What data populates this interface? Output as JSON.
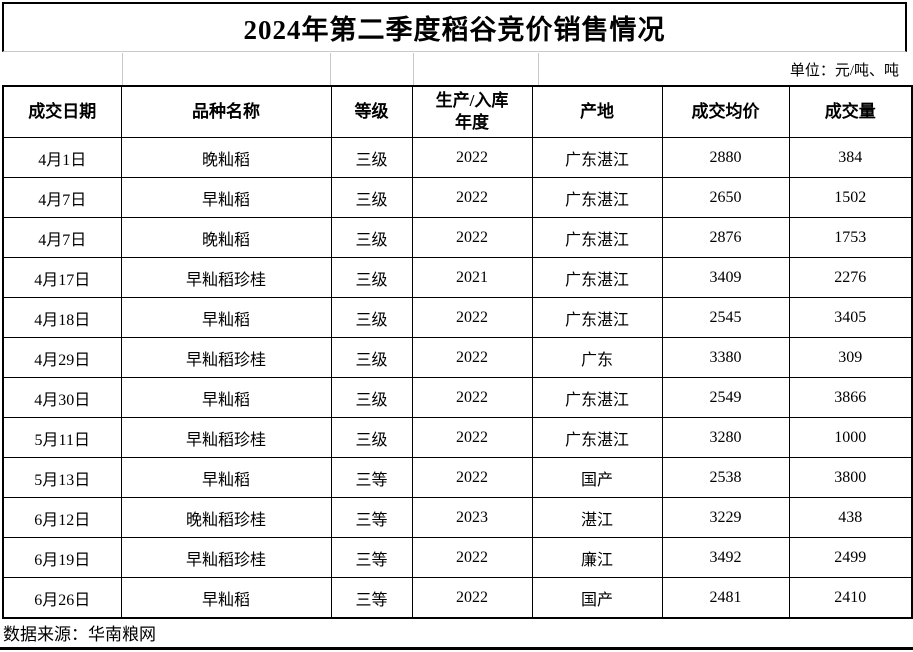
{
  "title": "2024年第二季度稻谷竞价销售情况",
  "unit_note": "单位：元/吨、吨",
  "source_note": "数据来源：华南粮网",
  "table": {
    "headers": [
      "成交日期",
      "品种名称",
      "等级",
      "生产/入库\n年度",
      "产地",
      "成交均价",
      "成交量"
    ],
    "rows": [
      [
        "4月1日",
        "晚籼稻",
        "三级",
        "2022",
        "广东湛江",
        "2880",
        "384"
      ],
      [
        "4月7日",
        "早籼稻",
        "三级",
        "2022",
        "广东湛江",
        "2650",
        "1502"
      ],
      [
        "4月7日",
        "晚籼稻",
        "三级",
        "2022",
        "广东湛江",
        "2876",
        "1753"
      ],
      [
        "4月17日",
        "早籼稻珍桂",
        "三级",
        "2021",
        "广东湛江",
        "3409",
        "2276"
      ],
      [
        "4月18日",
        "早籼稻",
        "三级",
        "2022",
        "广东湛江",
        "2545",
        "3405"
      ],
      [
        "4月29日",
        "早籼稻珍桂",
        "三级",
        "2022",
        "广东",
        "3380",
        "309"
      ],
      [
        "4月30日",
        "早籼稻",
        "三级",
        "2022",
        "广东湛江",
        "2549",
        "3866"
      ],
      [
        "5月11日",
        "早籼稻珍桂",
        "三级",
        "2022",
        "广东湛江",
        "3280",
        "1000"
      ],
      [
        "5月13日",
        "早籼稻",
        "三等",
        "2022",
        "国产",
        "2538",
        "3800"
      ],
      [
        "6月12日",
        "晚籼稻珍桂",
        "三等",
        "2023",
        "湛江",
        "3229",
        "438"
      ],
      [
        "6月19日",
        "早籼稻珍桂",
        "三等",
        "2022",
        "廉江",
        "3492",
        "2499"
      ],
      [
        "6月26日",
        "早籼稻",
        "三等",
        "2022",
        "国产",
        "2481",
        "2410"
      ]
    ]
  },
  "colors": {
    "border": "#000000",
    "gridline": "#c9c9c9",
    "background": "#ffffff",
    "text": "#000000"
  }
}
